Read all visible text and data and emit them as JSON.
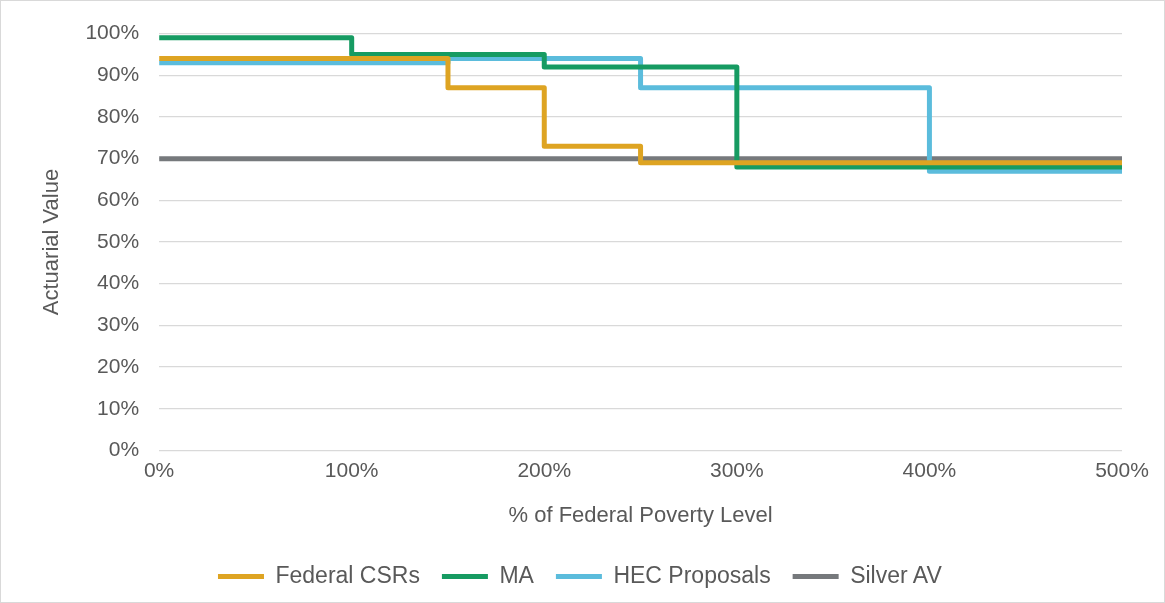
{
  "chart_data": {
    "type": "step",
    "xlabel": "% of Federal Poverty Level",
    "ylabel": "Actuarial Value",
    "xlim": [
      0,
      500
    ],
    "xticks": [
      {
        "value": 0,
        "label": "0%"
      },
      {
        "value": 100,
        "label": "100%"
      },
      {
        "value": 200,
        "label": "200%"
      },
      {
        "value": 300,
        "label": "300%"
      },
      {
        "value": 400,
        "label": "400%"
      },
      {
        "value": 500,
        "label": "500%"
      }
    ],
    "ylim": [
      0,
      100
    ],
    "yticks": [
      {
        "value": 0,
        "label": "0%"
      },
      {
        "value": 10,
        "label": "10%"
      },
      {
        "value": 20,
        "label": "20%"
      },
      {
        "value": 30,
        "label": "30%"
      },
      {
        "value": 40,
        "label": "40%"
      },
      {
        "value": 50,
        "label": "50%"
      },
      {
        "value": 60,
        "label": "60%"
      },
      {
        "value": 70,
        "label": "70%"
      },
      {
        "value": 80,
        "label": "80%"
      },
      {
        "value": 90,
        "label": "90%"
      },
      {
        "value": 100,
        "label": "100%"
      }
    ],
    "grid": "y",
    "legend": "bottom",
    "marker": "none",
    "line_style": "solid",
    "series": [
      {
        "name": "Federal CSRs",
        "color": "#dea422",
        "x": [
          0,
          150,
          200,
          250,
          500
        ],
        "values": [
          94,
          87,
          73,
          69,
          69
        ]
      },
      {
        "name": "MA",
        "color": "#169b62",
        "x": [
          0,
          100,
          200,
          300,
          500
        ],
        "values": [
          99,
          95,
          92,
          68,
          68
        ]
      },
      {
        "name": "HEC Proposals",
        "color": "#5bbcdc",
        "x": [
          0,
          150,
          250,
          400,
          500
        ],
        "values": [
          93,
          94,
          87,
          67,
          67
        ]
      },
      {
        "name": "Silver AV",
        "color": "#76797c",
        "x": [
          0,
          500
        ],
        "values": [
          70,
          70
        ]
      }
    ]
  }
}
